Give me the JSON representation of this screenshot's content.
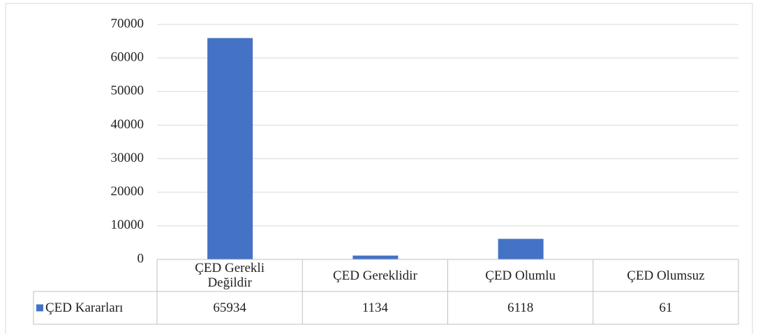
{
  "chart_data": {
    "type": "bar",
    "categories": [
      "ÇED Gerekli Değildir",
      "ÇED Gereklidir",
      "ÇED Olumlu",
      "ÇED Olumsuz"
    ],
    "series": [
      {
        "name": "ÇED Kararları",
        "color": "#4472c4",
        "values": [
          65934,
          1134,
          6118,
          61
        ]
      }
    ],
    "ylim": [
      0,
      70000
    ],
    "yticks": [
      0,
      10000,
      20000,
      30000,
      40000,
      50000,
      60000,
      70000
    ],
    "grid": true,
    "legend": "data-table"
  }
}
